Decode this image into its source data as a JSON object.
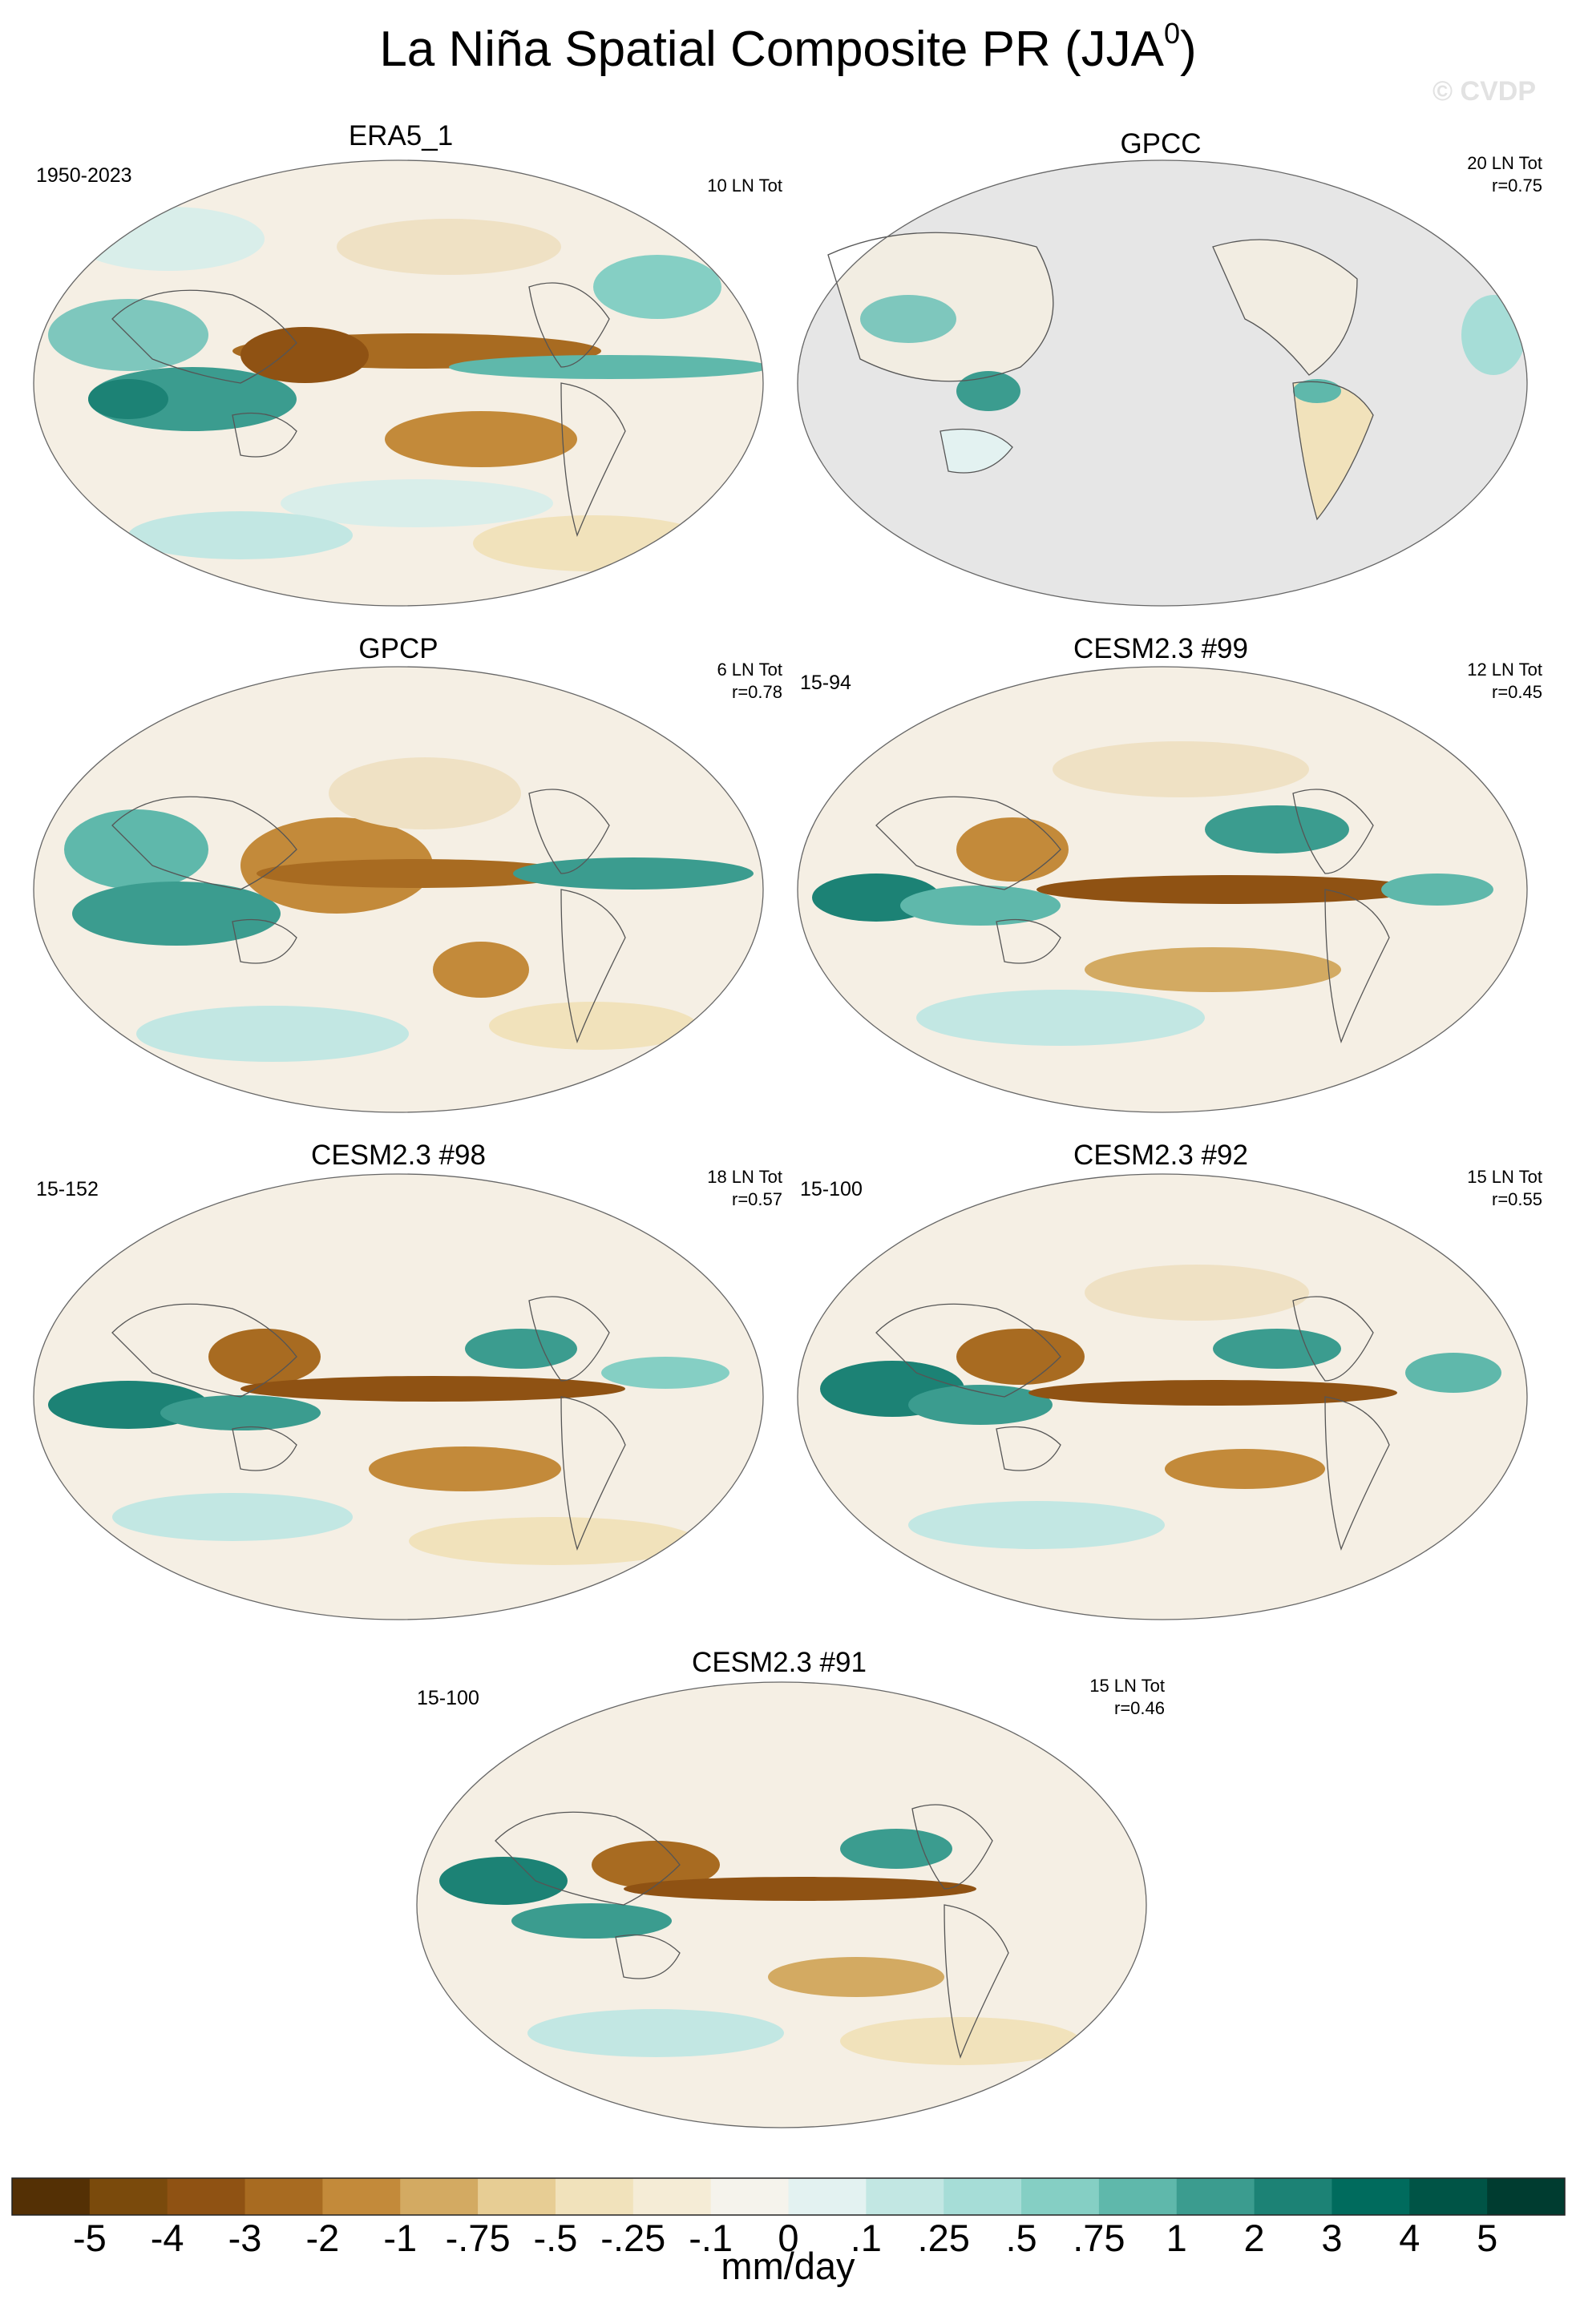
{
  "header": {
    "title_main": "La Niña Spatial Composite PR (JJA",
    "title_sup": "0",
    "title_end": ")",
    "watermark": "© CVDP"
  },
  "chart_data": {
    "type": "heatmap",
    "projection": "robinson-like global map, centered on the Pacific",
    "colormap": "brown-to-teal diverging (BrBG)",
    "colors": [
      "#543005",
      "#7a4a0c",
      "#8f5213",
      "#a86b21",
      "#c38a3a",
      "#d3aa62",
      "#e7cd94",
      "#f1e2bb",
      "#f5ecd6",
      "#f5f3ec",
      "#e3f2f1",
      "#c2e7e3",
      "#a6ddd7",
      "#85cfc4",
      "#5fb8ab",
      "#3b9c8f",
      "#1c8275",
      "#006b5d",
      "#005446",
      "#003c30"
    ],
    "ticks": [
      "-5",
      "-4",
      "-3",
      "-2",
      "-1",
      "-.75",
      "-.5",
      "-.25",
      "-.1",
      "0",
      ".1",
      ".25",
      ".5",
      ".75",
      "1",
      "2",
      "3",
      "4",
      "5"
    ],
    "units": "mm/day",
    "panels": [
      {
        "title": "ERA5_1",
        "period": "1950-2023",
        "count": "10 LN Tot",
        "r": ""
      },
      {
        "title": "GPCC",
        "period": "",
        "count": "20 LN Tot",
        "r": "r=0.75"
      },
      {
        "title": "GPCP",
        "period": "",
        "count": "6 LN Tot",
        "r": "r=0.78"
      },
      {
        "title": "CESM2.3 #99",
        "period": "15-94",
        "count": "12 LN Tot",
        "r": "r=0.45"
      },
      {
        "title": "CESM2.3 #98",
        "period": "15-152",
        "count": "18 LN Tot",
        "r": "r=0.57"
      },
      {
        "title": "CESM2.3 #92",
        "period": "15-100",
        "count": "15 LN Tot",
        "r": "r=0.55"
      },
      {
        "title": "CESM2.3 #91",
        "period": "15-100",
        "count": "15 LN Tot",
        "r": "r=0.46"
      }
    ]
  }
}
